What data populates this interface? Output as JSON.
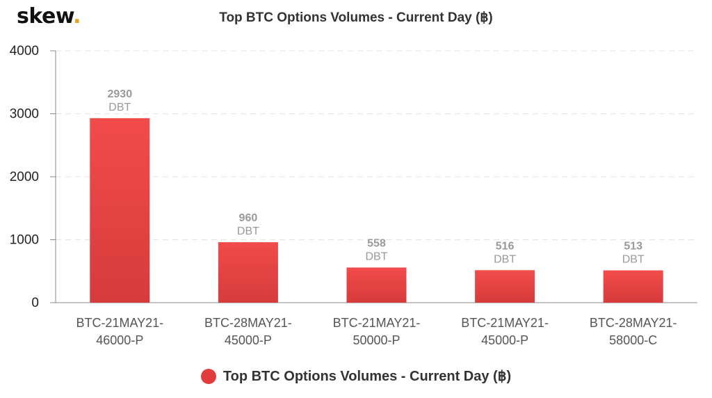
{
  "logo": {
    "text": "skew",
    "dot": "."
  },
  "chart_data": {
    "type": "bar",
    "title": "Top BTC Options Volumes - Current Day (฿)",
    "categories": [
      [
        "BTC-21MAY21-",
        "46000-P"
      ],
      [
        "BTC-28MAY21-",
        "45000-P"
      ],
      [
        "BTC-21MAY21-",
        "50000-P"
      ],
      [
        "BTC-21MAY21-",
        "45000-P"
      ],
      [
        "BTC-28MAY21-",
        "58000-C"
      ]
    ],
    "series": [
      {
        "name": "Top BTC Options Volumes - Current Day (฿)",
        "values": [
          2930,
          960,
          558,
          516,
          513
        ],
        "color": "#e84545"
      }
    ],
    "data_label_unit": "DBT",
    "ylim": [
      0,
      4000
    ],
    "yticks": [
      0,
      1000,
      2000,
      3000,
      4000
    ],
    "grid": true,
    "legend": "bottom"
  }
}
